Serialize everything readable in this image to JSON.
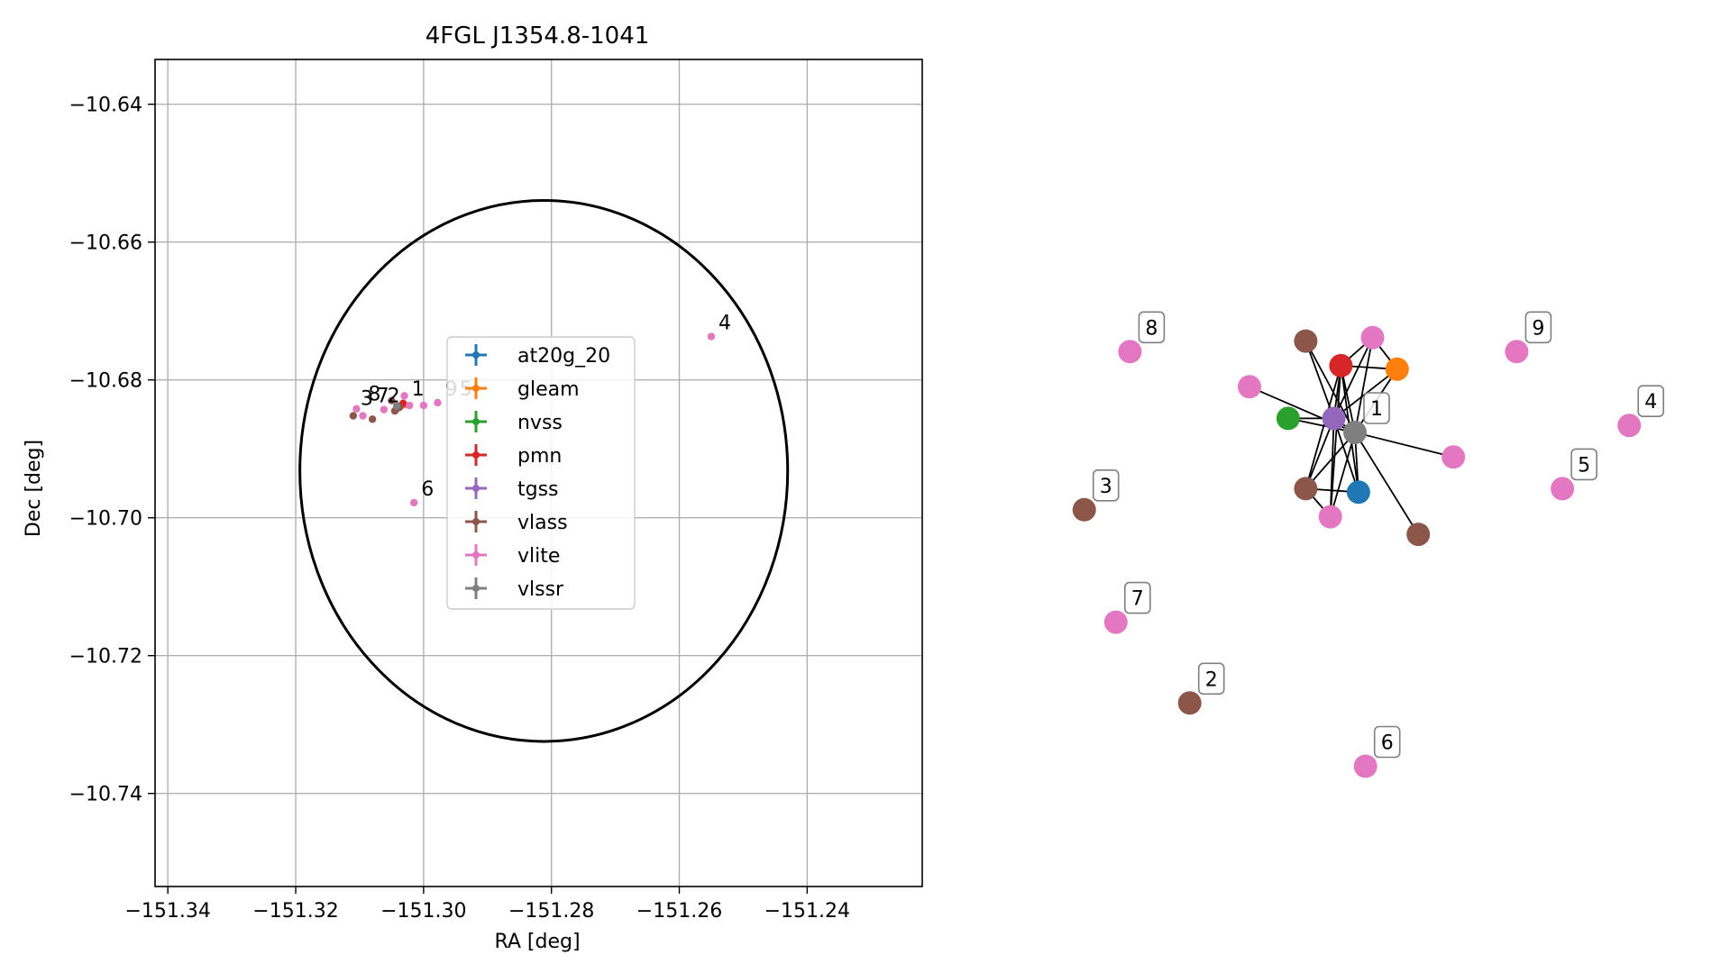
{
  "chart_data": [
    {
      "type": "scatter",
      "title": "4FGL J1354.8-1041",
      "xlabel": "RA [deg]",
      "ylabel": "Dec [deg]",
      "xlim": [
        -151.342,
        -151.222
      ],
      "ylim": [
        -10.7535,
        -10.6335
      ],
      "xticks": [
        -151.34,
        -151.32,
        -151.3,
        -151.28,
        -151.26,
        -151.24
      ],
      "xtick_labels": [
        "−151.34",
        "−151.32",
        "−151.30",
        "−151.28",
        "−151.26",
        "−151.24"
      ],
      "yticks": [
        -10.64,
        -10.66,
        -10.68,
        -10.7,
        -10.72,
        -10.74
      ],
      "ytick_labels": [
        "−10.64",
        "−10.66",
        "−10.68",
        "−10.70",
        "−10.72",
        "−10.74"
      ],
      "grid": true,
      "legend_position": "center",
      "ellipse": {
        "center": [
          -151.2812,
          -10.6932
        ],
        "width_ra": 0.0763,
        "height_dec": 0.0785
      },
      "series": [
        {
          "name": "at20g_20",
          "color": "#1f77b4",
          "points": [
            [
              -151.3035,
              -10.6837
            ]
          ]
        },
        {
          "name": "gleam",
          "color": "#ff7f0e",
          "points": [
            [
              -151.303,
              -10.6836
            ]
          ]
        },
        {
          "name": "nvss",
          "color": "#2ca02c",
          "points": [
            [
              -151.304,
              -10.684
            ]
          ]
        },
        {
          "name": "pmn",
          "color": "#d62728",
          "points": [
            [
              -151.3032,
              -10.6834
            ]
          ]
        },
        {
          "name": "tgss",
          "color": "#9467bd",
          "points": [
            [
              -151.3043,
              -10.6843
            ]
          ]
        },
        {
          "name": "vlass",
          "color": "#8c564b",
          "points": [
            [
              -151.311,
              -10.6852
            ],
            [
              -151.308,
              -10.6857
            ],
            [
              -151.305,
              -10.683
            ],
            [
              -151.3045,
              -10.6845
            ],
            [
              -151.3038,
              -10.684
            ]
          ]
        },
        {
          "name": "vlite",
          "color": "#e377c2",
          "points": [
            [
              -151.255,
              -10.6737
            ],
            [
              -151.3015,
              -10.6978
            ],
            [
              -151.2978,
              -10.6833
            ],
            [
              -151.3022,
              -10.6837
            ],
            [
              -151.3062,
              -10.6843
            ],
            [
              -151.3095,
              -10.6852
            ],
            [
              -151.3105,
              -10.6842
            ],
            [
              -151.3,
              -10.6837
            ],
            [
              -151.303,
              -10.6823
            ]
          ]
        },
        {
          "name": "vlssr",
          "color": "#7f7f7f",
          "points": [
            [
              -151.3042,
              -10.6838
            ]
          ]
        }
      ],
      "annotations": [
        {
          "text": "4",
          "x": -151.255,
          "y": -10.6737
        },
        {
          "text": "6",
          "x": -151.3015,
          "y": -10.6978
        },
        {
          "text": "9",
          "x": -151.2978,
          "y": -10.6833
        },
        {
          "text": "5",
          "x": -151.2955,
          "y": -10.6833
        },
        {
          "text": "1",
          "x": -151.303,
          "y": -10.6833
        },
        {
          "text": "8",
          "x": -151.3098,
          "y": -10.684
        },
        {
          "text": "3",
          "x": -151.311,
          "y": -10.6847
        },
        {
          "text": "7",
          "x": -151.3085,
          "y": -10.6843
        },
        {
          "text": "2",
          "x": -151.3068,
          "y": -10.6843
        }
      ]
    },
    {
      "type": "network",
      "edge_color": "#000000",
      "nodes": [
        {
          "id": "c",
          "color": "#7f7f7f",
          "label": "1",
          "pos": [
            0.0,
            0.0
          ]
        },
        {
          "id": "p",
          "color": "#9467bd",
          "pos": [
            -0.6,
            0.4
          ]
        },
        {
          "id": "o",
          "color": "#ff7f0e",
          "pos": [
            1.2,
            1.8
          ]
        },
        {
          "id": "r",
          "color": "#d62728",
          "pos": [
            -0.4,
            1.9
          ]
        },
        {
          "id": "g",
          "color": "#2ca02c",
          "pos": [
            -1.9,
            0.4
          ]
        },
        {
          "id": "bl",
          "color": "#1f77b4",
          "pos": [
            0.1,
            -1.7
          ]
        },
        {
          "id": "br1",
          "color": "#8c564b",
          "pos": [
            -1.4,
            2.6
          ]
        },
        {
          "id": "pk1",
          "color": "#e377c2",
          "pos": [
            0.5,
            2.7
          ]
        },
        {
          "id": "pk2",
          "color": "#e377c2",
          "pos": [
            -3.0,
            1.3
          ]
        },
        {
          "id": "pk3",
          "color": "#e377c2",
          "pos": [
            2.8,
            -0.7
          ]
        },
        {
          "id": "br2",
          "color": "#8c564b",
          "pos": [
            -1.4,
            -1.6
          ]
        },
        {
          "id": "pk4",
          "color": "#e377c2",
          "pos": [
            -0.7,
            -2.4
          ]
        },
        {
          "id": "br3",
          "color": "#8c564b",
          "pos": [
            1.8,
            -2.9
          ]
        },
        {
          "id": "n8",
          "color": "#e377c2",
          "label": "8",
          "pos": [
            -6.4,
            2.3
          ]
        },
        {
          "id": "n9",
          "color": "#e377c2",
          "label": "9",
          "pos": [
            4.6,
            2.3
          ]
        },
        {
          "id": "n4",
          "color": "#e377c2",
          "label": "4",
          "pos": [
            7.8,
            0.2
          ]
        },
        {
          "id": "n5",
          "color": "#e377c2",
          "label": "5",
          "pos": [
            5.9,
            -1.6
          ]
        },
        {
          "id": "n3",
          "color": "#8c564b",
          "label": "3",
          "pos": [
            -7.7,
            -2.2
          ]
        },
        {
          "id": "n7",
          "color": "#e377c2",
          "label": "7",
          "pos": [
            -6.8,
            -5.4
          ]
        },
        {
          "id": "n2",
          "color": "#8c564b",
          "label": "2",
          "pos": [
            -4.7,
            -7.7
          ]
        },
        {
          "id": "n6",
          "color": "#e377c2",
          "label": "6",
          "pos": [
            0.3,
            -9.5
          ]
        }
      ],
      "edges": [
        [
          "c",
          "p"
        ],
        [
          "c",
          "o"
        ],
        [
          "c",
          "r"
        ],
        [
          "c",
          "g"
        ],
        [
          "c",
          "bl"
        ],
        [
          "c",
          "br1"
        ],
        [
          "c",
          "pk1"
        ],
        [
          "c",
          "pk2"
        ],
        [
          "c",
          "pk3"
        ],
        [
          "c",
          "br2"
        ],
        [
          "c",
          "pk4"
        ],
        [
          "c",
          "br3"
        ],
        [
          "p",
          "o"
        ],
        [
          "p",
          "r"
        ],
        [
          "p",
          "g"
        ],
        [
          "p",
          "bl"
        ],
        [
          "p",
          "br1"
        ],
        [
          "p",
          "pk1"
        ],
        [
          "p",
          "br2"
        ],
        [
          "p",
          "pk4"
        ],
        [
          "o",
          "r"
        ],
        [
          "o",
          "pk1"
        ],
        [
          "r",
          "pk1"
        ],
        [
          "r",
          "bl"
        ],
        [
          "r",
          "br2"
        ],
        [
          "r",
          "pk4"
        ],
        [
          "br2",
          "bl"
        ],
        [
          "br2",
          "pk4"
        ]
      ]
    }
  ]
}
